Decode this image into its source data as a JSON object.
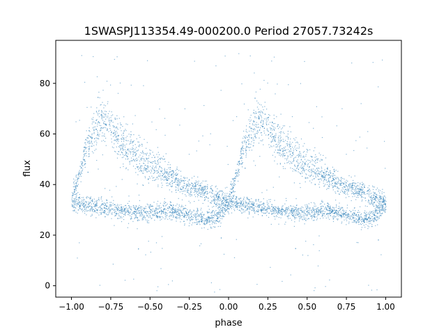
{
  "chart_data": {
    "type": "scatter",
    "title": "1SWASPJ113354.49-000200.0 Period 27057.73242s",
    "xlabel": "phase",
    "ylabel": "flux",
    "xlim": [
      -1.1,
      1.1
    ],
    "ylim": [
      -4.5,
      97
    ],
    "x_ticks": [
      -1.0,
      -0.75,
      -0.5,
      -0.25,
      0.0,
      0.25,
      0.5,
      0.75,
      1.0
    ],
    "x_tick_labels": [
      "−1.00",
      "−0.75",
      "−0.50",
      "−0.25",
      "0.00",
      "0.25",
      "0.50",
      "0.75",
      "1.00"
    ],
    "y_ticks": [
      0,
      20,
      40,
      60,
      80
    ],
    "y_tick_labels": [
      "0",
      "20",
      "40",
      "60",
      "80"
    ],
    "grid": false,
    "marker_color": "#1f77b4",
    "series": [
      {
        "description_points": "phase-folded light curve, shown twice over phase -1..1",
        "upper_branch": {
          "x": [
            0.0,
            0.05,
            0.1,
            0.15,
            0.18,
            0.25,
            0.35,
            0.45,
            0.55,
            0.65,
            0.75,
            0.85,
            0.95,
            1.0
          ],
          "y": [
            34,
            45,
            56,
            64,
            68,
            64,
            57,
            51,
            46,
            42,
            39,
            37,
            34,
            33
          ]
        },
        "lower_branch": {
          "x": [
            0.0,
            0.1,
            0.2,
            0.3,
            0.4,
            0.5,
            0.6,
            0.7,
            0.8,
            0.85,
            0.9,
            0.95,
            1.0
          ],
          "y": [
            33,
            32,
            31,
            30,
            29,
            29,
            30,
            29,
            27,
            26,
            27,
            29,
            33
          ]
        },
        "peak_spread": 8,
        "scatter_range": [
          -2,
          92
        ]
      }
    ]
  }
}
